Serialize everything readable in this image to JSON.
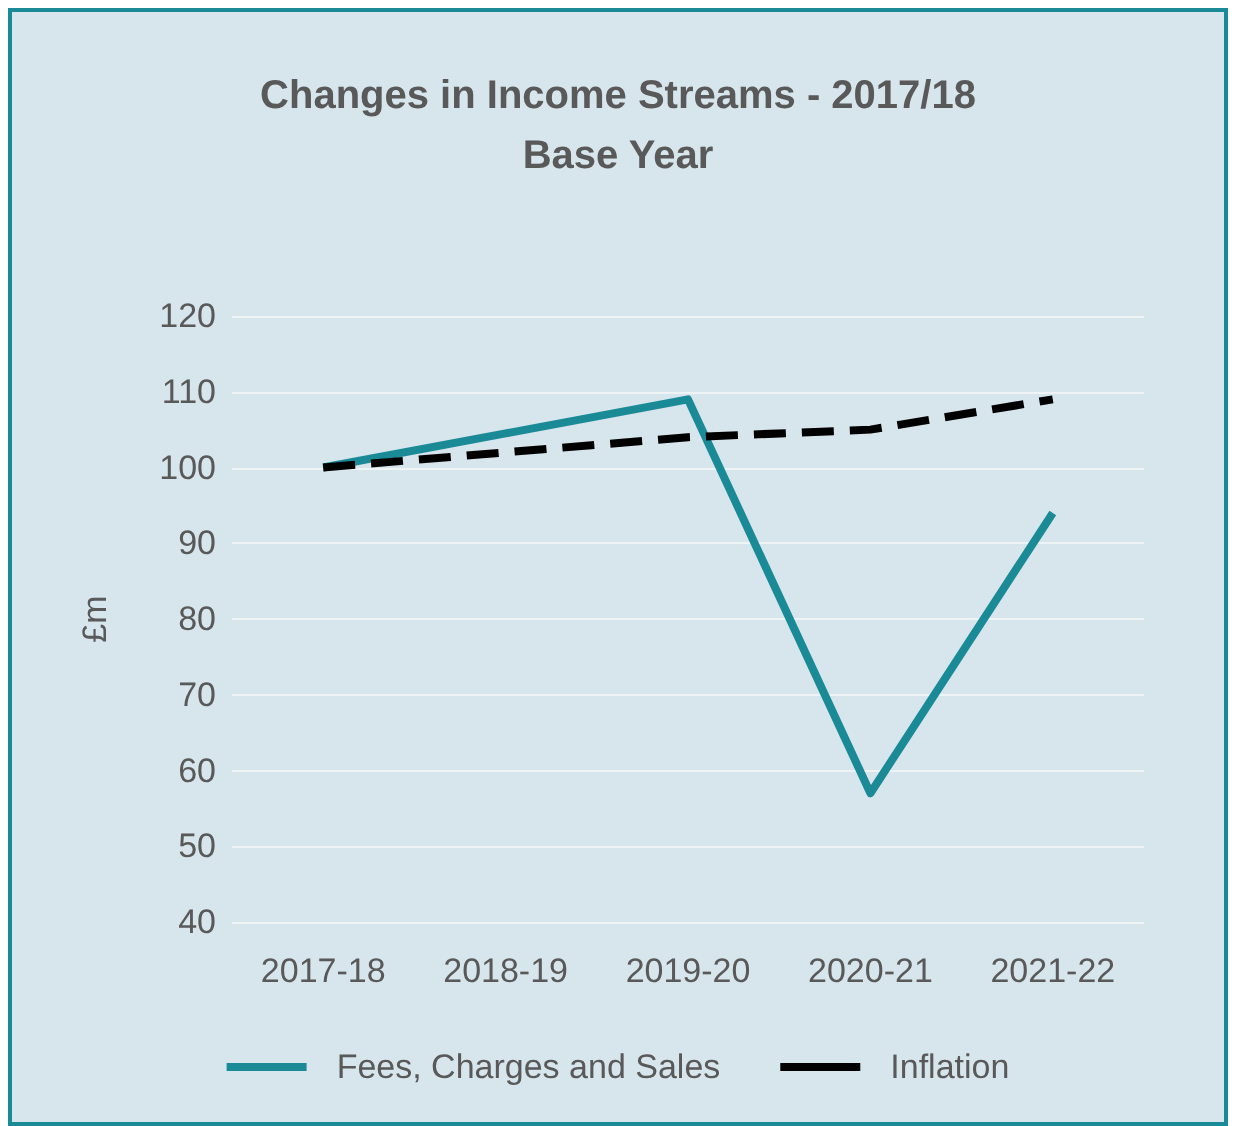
{
  "chart_data": {
    "type": "line",
    "title": "Changes in Income Streams - 2017/18\nBase Year",
    "ylabel": "£m",
    "categories": [
      "2017-18",
      "2018-19",
      "2019-20",
      "2020-21",
      "2021-22"
    ],
    "series": [
      {
        "name": "Fees, Charges and Sales",
        "color": "#1a8a96",
        "values": [
          100,
          104.5,
          109,
          57,
          94
        ],
        "line_style": "solid"
      },
      {
        "name": "Inflation",
        "color": "#000000",
        "values": [
          100,
          102,
          104,
          105,
          109
        ],
        "line_style": "dashed"
      }
    ],
    "ylim": [
      40,
      120
    ],
    "yticks": [
      40,
      50,
      60,
      70,
      80,
      90,
      100,
      110,
      120
    ],
    "grid": "y",
    "legend": "bottom",
    "marker": "none"
  }
}
